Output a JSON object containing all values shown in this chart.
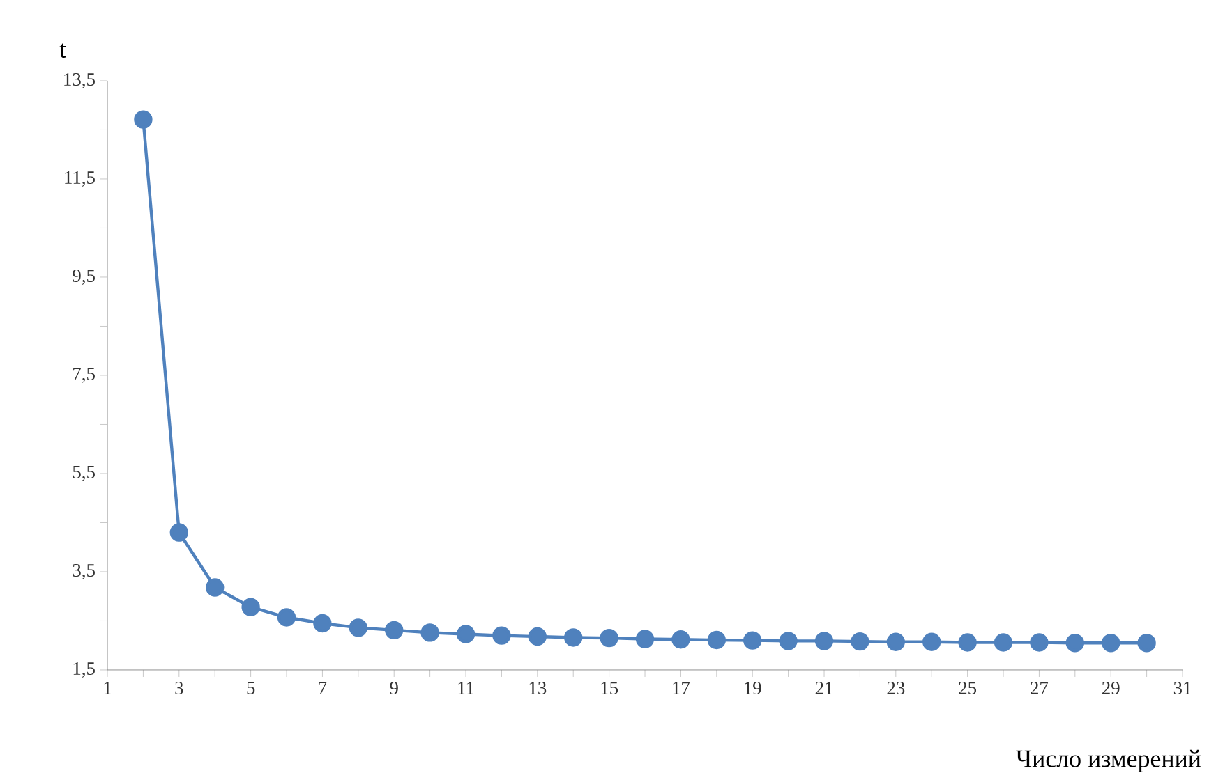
{
  "chart_data": {
    "type": "line",
    "xlabel": "Число измерений",
    "ylabel": "t",
    "x": [
      2,
      3,
      4,
      5,
      6,
      7,
      8,
      9,
      10,
      11,
      12,
      13,
      14,
      15,
      16,
      17,
      18,
      19,
      20,
      21,
      22,
      23,
      24,
      25,
      26,
      27,
      28,
      29,
      30
    ],
    "series": [
      {
        "color": "#4f81bd",
        "values": [
          12.71,
          4.3,
          3.18,
          2.78,
          2.57,
          2.45,
          2.36,
          2.31,
          2.26,
          2.23,
          2.2,
          2.18,
          2.16,
          2.15,
          2.13,
          2.12,
          2.11,
          2.1,
          2.09,
          2.09,
          2.08,
          2.07,
          2.07,
          2.06,
          2.06,
          2.06,
          2.05,
          2.05,
          2.05
        ]
      }
    ],
    "xlim": [
      1,
      31
    ],
    "xticks": [
      1,
      3,
      5,
      7,
      9,
      11,
      13,
      15,
      17,
      19,
      21,
      23,
      25,
      27,
      29,
      31
    ],
    "ylim": [
      1.5,
      13.5
    ],
    "yticks": [
      {
        "value": 1.5,
        "label": "1,5"
      },
      {
        "value": 3.5,
        "label": "3,5"
      },
      {
        "value": 5.5,
        "label": "5,5"
      },
      {
        "value": 7.5,
        "label": "7,5"
      },
      {
        "value": 9.5,
        "label": "9,5"
      },
      {
        "value": 11.5,
        "label": "11,5"
      },
      {
        "value": 13.5,
        "label": "13,5"
      }
    ],
    "grid": false,
    "marker": "circle",
    "line_style": "solid"
  }
}
